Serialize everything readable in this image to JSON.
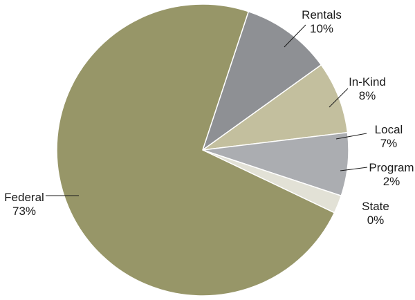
{
  "chart_data": {
    "type": "pie",
    "start_angle_deg": 0,
    "direction": "clockwise",
    "legend": "none",
    "slices": [
      {
        "name": "Rentals",
        "value": 10,
        "label": "10%",
        "color": "#8e9094"
      },
      {
        "name": "In-Kind",
        "value": 8,
        "label": "8%",
        "color": "#c3bf9e"
      },
      {
        "name": "Local",
        "value": 7,
        "label": "7%",
        "color": "#abadb1"
      },
      {
        "name": "Program",
        "value": 2,
        "label": "2%",
        "color": "#e2e1d6"
      },
      {
        "name": "State",
        "value": 0,
        "label": "0%",
        "color": "#c7c9cc"
      },
      {
        "name": "Federal",
        "value": 73,
        "label": "73%",
        "color": "#979668"
      }
    ]
  }
}
